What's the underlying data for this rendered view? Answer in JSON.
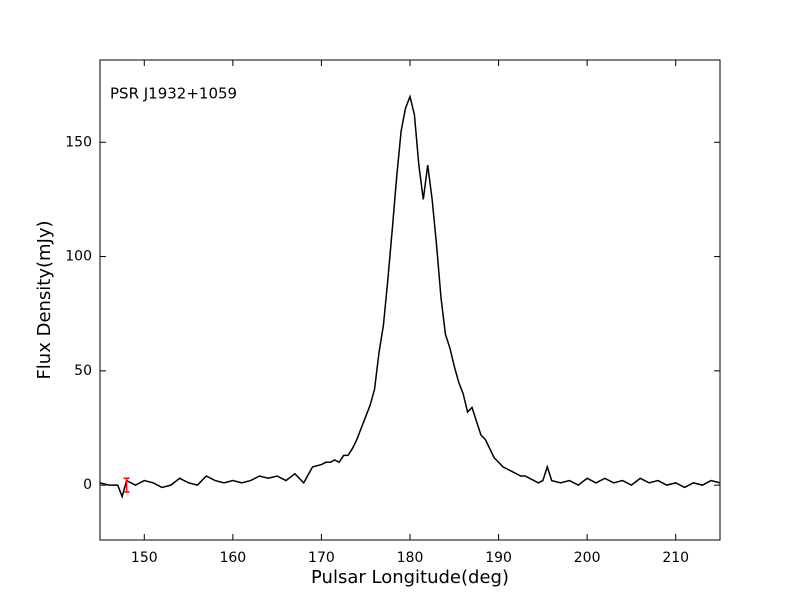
{
  "chart_data": {
    "type": "line",
    "annotation": "PSR J1932+1059",
    "x_label": "Pulsar Longitude(deg)",
    "y_label": "Flux Density(mJy)",
    "x": [
      145,
      146,
      147,
      147.5,
      148,
      149,
      150,
      151,
      152,
      153,
      154,
      155,
      156,
      157,
      158,
      159,
      160,
      161,
      162,
      163,
      164,
      165,
      166,
      167,
      168,
      169,
      170,
      170.5,
      171,
      171.5,
      172,
      172.5,
      173,
      173.5,
      174,
      174.5,
      175,
      175.5,
      176,
      176.5,
      177,
      177.5,
      178,
      178.5,
      179,
      179.5,
      180,
      180.5,
      181,
      181.5,
      182,
      182.5,
      183,
      183.5,
      184,
      184.5,
      185,
      185.5,
      186,
      186.5,
      187,
      187.5,
      188,
      188.5,
      189,
      189.5,
      190,
      190.5,
      191,
      191.5,
      192,
      192.5,
      193,
      193.5,
      194,
      194.5,
      195,
      195.5,
      196,
      197,
      198,
      199,
      200,
      201,
      202,
      203,
      204,
      205,
      206,
      207,
      208,
      209,
      210,
      211,
      212,
      213,
      214,
      215
    ],
    "series": [
      {
        "color": "#000000",
        "values": [
          1,
          0,
          0,
          -5,
          2,
          0,
          2,
          1,
          -1,
          0,
          3,
          1,
          0,
          4,
          2,
          1,
          2,
          1,
          2,
          4,
          3,
          4,
          2,
          5,
          1,
          8,
          9,
          10,
          10,
          11,
          10,
          13,
          13,
          16,
          20,
          25,
          30,
          35,
          42,
          58,
          70,
          90,
          112,
          135,
          155,
          165,
          170,
          162,
          140,
          125,
          140,
          125,
          105,
          82,
          66,
          60,
          52,
          45,
          40,
          32,
          34,
          28,
          22,
          20,
          16,
          12,
          10,
          8,
          7,
          6,
          5,
          4,
          4,
          3,
          2,
          1,
          2,
          8,
          2,
          1,
          2,
          0,
          3,
          1,
          3,
          1,
          2,
          0,
          3,
          1,
          2,
          0,
          1,
          -1,
          1,
          0,
          2,
          1
        ]
      }
    ],
    "errorbar": {
      "x": 148,
      "y": 0,
      "err": 3,
      "color": "#ff0000"
    },
    "xlim": [
      145,
      215
    ],
    "ylim": [
      -24,
      186
    ],
    "xticks": [
      150,
      160,
      170,
      180,
      190,
      200,
      210
    ],
    "yticks": [
      0,
      50,
      100,
      150
    ]
  }
}
